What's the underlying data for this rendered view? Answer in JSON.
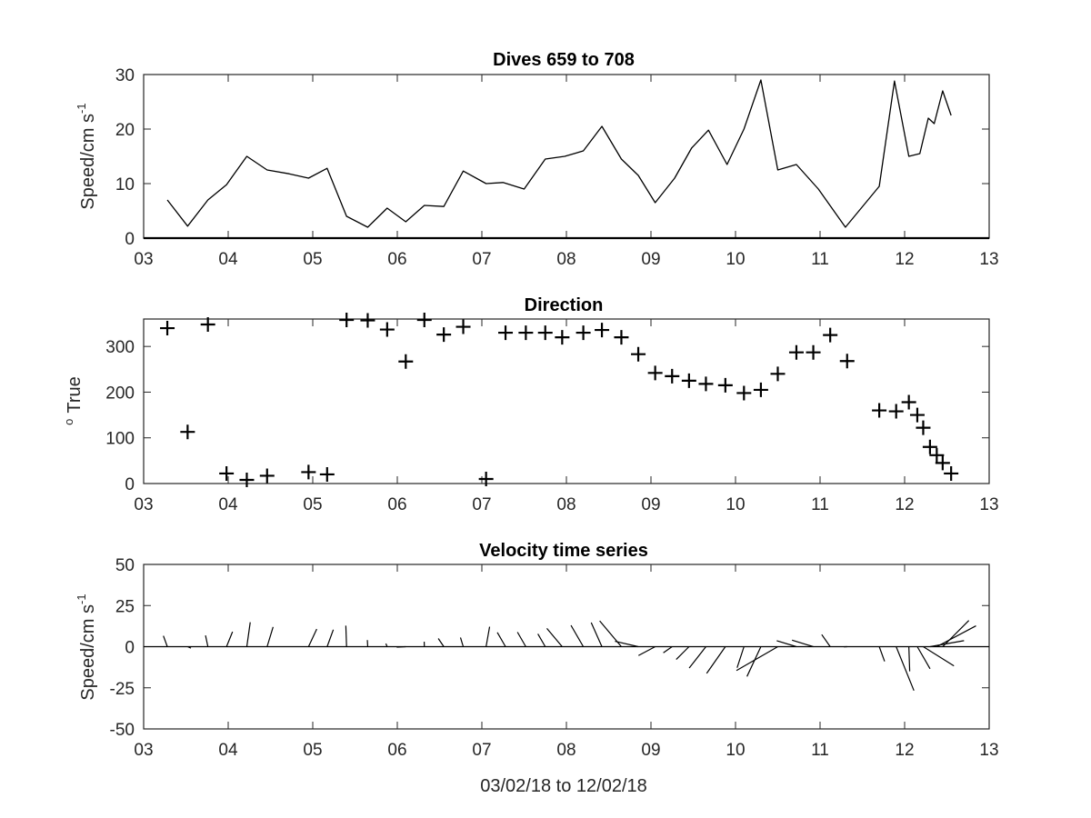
{
  "chart_data": [
    {
      "type": "line",
      "title": "Dives 659 to 708",
      "ylabel": "Speed/cm s",
      "ylabel_sup": "-1",
      "xlim": [
        3,
        13
      ],
      "ylim": [
        0,
        30
      ],
      "xticks": [
        3,
        4,
        5,
        6,
        7,
        8,
        9,
        10,
        11,
        12,
        13
      ],
      "xtick_labels": [
        "03",
        "04",
        "05",
        "06",
        "07",
        "08",
        "09",
        "10",
        "11",
        "12",
        "13"
      ],
      "yticks": [
        0,
        10,
        20,
        30
      ],
      "grid": false,
      "series": [
        {
          "x": [
            3.28,
            3.52,
            3.76,
            3.98,
            4.22,
            4.46,
            4.72,
            4.95,
            5.17,
            5.4,
            5.65,
            5.88,
            6.1,
            6.32,
            6.55,
            6.78,
            7.05,
            7.25,
            7.5,
            7.75,
            7.98,
            8.2,
            8.42,
            8.65,
            8.85,
            9.05,
            9.28,
            9.48,
            9.68,
            9.9,
            10.1,
            10.3,
            10.5,
            10.72,
            10.98,
            11.3,
            11.7,
            11.88,
            12.05,
            12.18,
            12.28,
            12.35,
            12.45,
            12.55
          ],
          "y": [
            7,
            2.2,
            7,
            9.8,
            15,
            12.5,
            11.8,
            11,
            12.8,
            4,
            2,
            5.5,
            3,
            6,
            5.8,
            12.3,
            10,
            10.2,
            9,
            14.5,
            15,
            16,
            20.5,
            14.5,
            11.5,
            6.5,
            11,
            16.5,
            19.8,
            13.5,
            20,
            29,
            12.5,
            13.5,
            9,
            2,
            9.5,
            28.8,
            15,
            15.5,
            22,
            21,
            27,
            22.5
          ]
        }
      ]
    },
    {
      "type": "scatter",
      "title": "Direction",
      "ylabel": "True",
      "ylabel_sup": "o",
      "xlim": [
        3,
        13
      ],
      "ylim": [
        0,
        360
      ],
      "xticks": [
        3,
        4,
        5,
        6,
        7,
        8,
        9,
        10,
        11,
        12,
        13
      ],
      "xtick_labels": [
        "03",
        "04",
        "05",
        "06",
        "07",
        "08",
        "09",
        "10",
        "11",
        "12",
        "13"
      ],
      "yticks": [
        0,
        100,
        200,
        300
      ],
      "marker": "+",
      "grid": false,
      "series": [
        {
          "x": [
            3.28,
            3.52,
            3.76,
            3.98,
            4.22,
            4.46,
            4.95,
            5.17,
            5.4,
            5.65,
            5.88,
            6.1,
            6.32,
            6.55,
            6.78,
            7.05,
            7.28,
            7.52,
            7.75,
            7.95,
            8.2,
            8.42,
            8.65,
            8.85,
            9.05,
            9.25,
            9.45,
            9.65,
            9.88,
            10.1,
            10.3,
            10.5,
            10.72,
            10.92,
            11.12,
            11.32,
            11.7,
            11.9,
            12.05,
            12.15,
            12.22,
            12.3,
            12.38,
            12.45,
            12.55
          ],
          "y": [
            340,
            113,
            348,
            22,
            8,
            17,
            25,
            20,
            358,
            357,
            337,
            267,
            358,
            326,
            343,
            10,
            330,
            330,
            330,
            320,
            330,
            336,
            320,
            283,
            242,
            235,
            225,
            218,
            215,
            198,
            205,
            240,
            287,
            287,
            325,
            268,
            160,
            158,
            178,
            150,
            122,
            80,
            62,
            45,
            22
          ]
        }
      ]
    },
    {
      "type": "vector",
      "title": "Velocity time series",
      "ylabel": "Speed/cm s",
      "ylabel_sup": "-1",
      "xlabel": "03/02/18 to 12/02/18",
      "xlim": [
        3,
        13
      ],
      "ylim": [
        -50,
        50
      ],
      "xticks": [
        3,
        4,
        5,
        6,
        7,
        8,
        9,
        10,
        11,
        12,
        13
      ],
      "xtick_labels": [
        "03",
        "04",
        "05",
        "06",
        "07",
        "08",
        "09",
        "10",
        "11",
        "12",
        "13"
      ],
      "yticks": [
        -50,
        -25,
        0,
        25,
        50
      ],
      "grid": false,
      "note_vectors": "u = speed*sin(direction), v = speed*cos(direction) drawn from each dive time on the zero line"
    }
  ]
}
